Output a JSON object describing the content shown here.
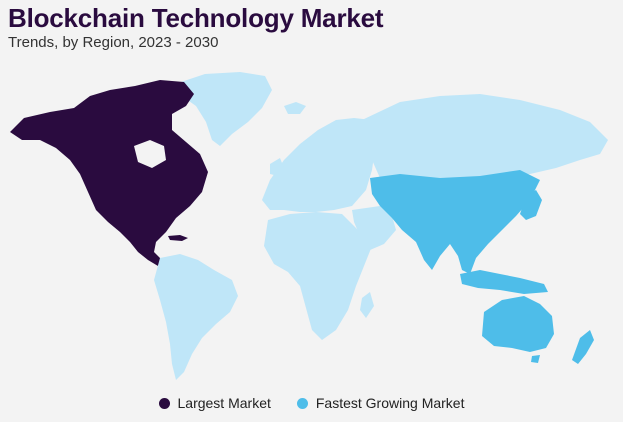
{
  "title": "Blockchain Technology Market",
  "subtitle": "Trends, by Region, 2023 - 2030",
  "colors": {
    "largest": "#2a0b3f",
    "fastest": "#4ebde9",
    "other": "#bfe6f8"
  },
  "legend": {
    "largest_label": "Largest Market",
    "fastest_label": "Fastest Growing Market"
  },
  "regions": {
    "north_america": "largest",
    "asia_pacific": "fastest",
    "europe": "other",
    "latin_america": "other",
    "middle_east_africa": "other"
  }
}
